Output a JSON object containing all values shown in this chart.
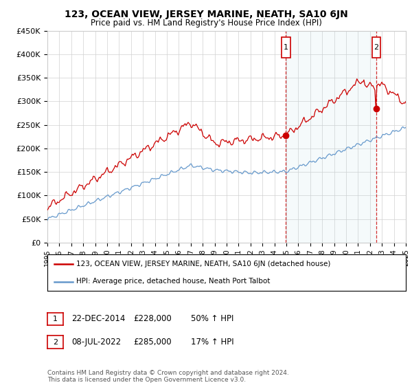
{
  "title": "123, OCEAN VIEW, JERSEY MARINE, NEATH, SA10 6JN",
  "subtitle": "Price paid vs. HM Land Registry's House Price Index (HPI)",
  "legend_line1": "123, OCEAN VIEW, JERSEY MARINE, NEATH, SA10 6JN (detached house)",
  "legend_line2": "HPI: Average price, detached house, Neath Port Talbot",
  "annotation1_date": "22-DEC-2014",
  "annotation1_price": "£228,000",
  "annotation1_hpi": "50% ↑ HPI",
  "annotation2_date": "08-JUL-2022",
  "annotation2_price": "£285,000",
  "annotation2_hpi": "17% ↑ HPI",
  "footnote": "Contains HM Land Registry data © Crown copyright and database right 2024.\nThis data is licensed under the Open Government Licence v3.0.",
  "red_color": "#cc0000",
  "blue_color": "#6699cc",
  "marker1_x": 2014.97,
  "marker1_y": 228000,
  "marker2_x": 2022.52,
  "marker2_y": 285000,
  "xmin": 1995,
  "xmax": 2025,
  "ymin": 0,
  "ymax": 450000,
  "yticks": [
    0,
    50000,
    100000,
    150000,
    200000,
    250000,
    300000,
    350000,
    400000,
    450000
  ],
  "ytick_labels": [
    "£0",
    "£50K",
    "£100K",
    "£150K",
    "£200K",
    "£250K",
    "£300K",
    "£350K",
    "£400K",
    "£450K"
  ]
}
